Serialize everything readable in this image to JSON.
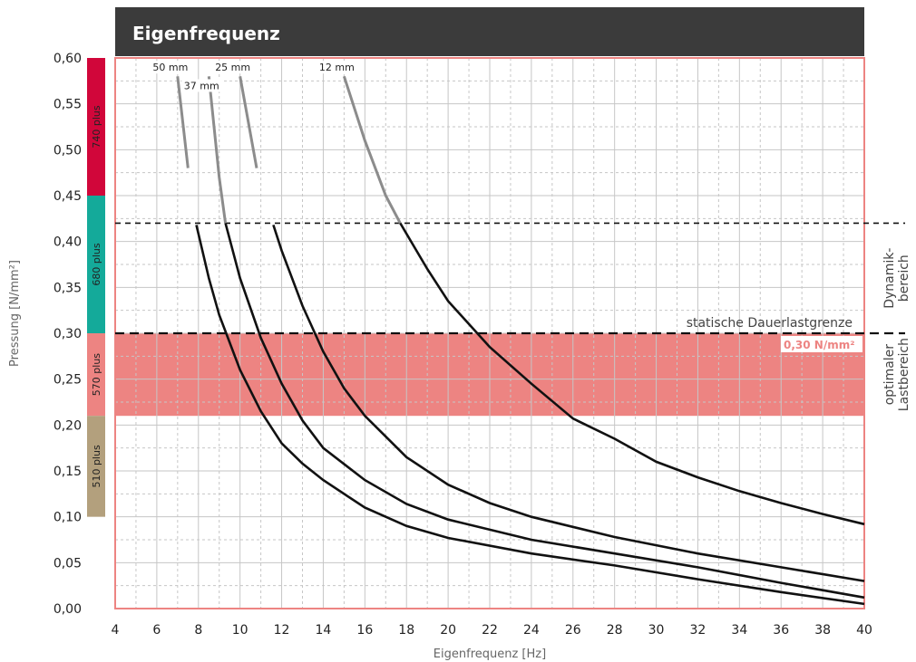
{
  "chart_data": {
    "type": "line",
    "title": "Eigenfrequenz",
    "xlabel": "Eigenfrequenz [Hz]",
    "ylabel": "Pressung [N/mm²]",
    "xlim": [
      4,
      40
    ],
    "ylim": [
      0,
      0.6
    ],
    "x_ticks": [
      "4",
      "6",
      "8",
      "10",
      "12",
      "14",
      "16",
      "18",
      "20",
      "22",
      "24",
      "26",
      "28",
      "30",
      "32",
      "34",
      "36",
      "38",
      "40"
    ],
    "y_ticks": [
      "0,00",
      "0,05",
      "0,10",
      "0,15",
      "0,20",
      "0,25",
      "0,30",
      "0,35",
      "0,40",
      "0,45",
      "0,50",
      "0,55",
      "0,60"
    ],
    "grid": true,
    "series": [
      {
        "name": "50 mm",
        "label_y": 0.586,
        "x": [
          7.0,
          7.5,
          7.9,
          8.5,
          9.0,
          10.0,
          11.0,
          12.0,
          13.0,
          14.0,
          16.0,
          18.0,
          20.0,
          24.0,
          28.0,
          32.0,
          36.0,
          40.0
        ],
        "y": [
          0.58,
          0.48,
          0.418,
          0.36,
          0.32,
          0.26,
          0.215,
          0.18,
          0.158,
          0.14,
          0.11,
          0.09,
          0.077,
          0.06,
          0.047,
          0.032,
          0.018,
          0.005
        ]
      },
      {
        "name": "37 mm",
        "label_y": 0.566,
        "x": [
          8.5,
          9.0,
          9.3,
          10.0,
          11.0,
          12.0,
          13.0,
          14.0,
          16.0,
          18.0,
          20.0,
          24.0,
          28.0,
          32.0,
          36.0,
          40.0
        ],
        "y": [
          0.58,
          0.47,
          0.42,
          0.36,
          0.295,
          0.245,
          0.205,
          0.175,
          0.14,
          0.114,
          0.097,
          0.075,
          0.06,
          0.045,
          0.028,
          0.012
        ]
      },
      {
        "name": "25 mm",
        "label_y": 0.586,
        "x": [
          10.0,
          10.8,
          11.6,
          12.0,
          13.0,
          14.0,
          15.0,
          16.0,
          18.0,
          20.0,
          22.0,
          24.0,
          28.0,
          32.0,
          36.0,
          40.0
        ],
        "y": [
          0.58,
          0.48,
          0.418,
          0.39,
          0.33,
          0.28,
          0.24,
          0.21,
          0.165,
          0.135,
          0.115,
          0.1,
          0.078,
          0.06,
          0.045,
          0.03
        ]
      },
      {
        "name": "12 mm",
        "label_y": 0.586,
        "x": [
          15.0,
          16.0,
          17.0,
          17.7,
          19.0,
          20.0,
          21.0,
          22.0,
          24.0,
          26.0,
          28.0,
          30.0,
          32.0,
          34.0,
          36.0,
          38.0,
          40.0
        ],
        "y": [
          0.58,
          0.51,
          0.45,
          0.42,
          0.37,
          0.335,
          0.31,
          0.285,
          0.245,
          0.207,
          0.185,
          0.16,
          0.143,
          0.128,
          0.115,
          0.103,
          0.092
        ]
      }
    ],
    "reference_lines": [
      {
        "y": 0.42,
        "style": "dashed"
      },
      {
        "y": 0.3,
        "style": "dashed",
        "label": "statische Dauerlastgrenze"
      }
    ],
    "optimal_band": {
      "y0": 0.21,
      "y1": 0.3,
      "value_label": "0,30 N/mm²"
    },
    "region_labels": [
      {
        "line1": "Dynamik-",
        "line2": "bereich",
        "y_center": 0.36
      },
      {
        "line1": "optimaler",
        "line2": "Lastbereich",
        "y_center": 0.255
      }
    ],
    "material_bands": [
      {
        "name": "740 plus",
        "y0": 0.45,
        "y1": 0.6,
        "color": "#d1063a"
      },
      {
        "name": "680 plus",
        "y0": 0.3,
        "y1": 0.45,
        "color": "#14aa9a"
      },
      {
        "name": "570 plus",
        "y0": 0.21,
        "y1": 0.3,
        "color": "#ed8482"
      },
      {
        "name": "510 plus",
        "y0": 0.1,
        "y1": 0.21,
        "color": "#b3a07d"
      }
    ],
    "colors": {
      "band": "#ed8482",
      "header": "#3b3b3b",
      "frame": "#ed8482",
      "curve_top": "#8c8c8c",
      "curve_bottom": "#111111"
    }
  }
}
